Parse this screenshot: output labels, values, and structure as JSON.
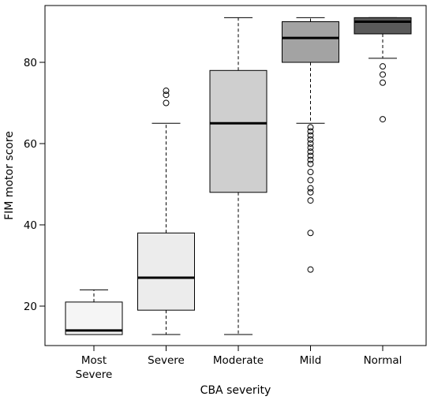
{
  "chart_data": {
    "type": "boxplot",
    "title": "",
    "xlabel": "CBA severity",
    "ylabel": "FIM motor score",
    "ylim": [
      10,
      95
    ],
    "yticks": [
      20,
      40,
      60,
      80
    ],
    "grid": false,
    "categories": [
      [
        "Most",
        "Severe"
      ],
      [
        "Severe"
      ],
      [
        "Moderate"
      ],
      [
        "Mild"
      ],
      [
        "Normal"
      ]
    ],
    "boxes": [
      {
        "whisker_low": 13,
        "q1": 13,
        "median": 14,
        "q3": 21,
        "whisker_high": 24,
        "fill": "#f5f5f5",
        "outliers": []
      },
      {
        "whisker_low": 13,
        "q1": 19,
        "median": 27,
        "q3": 38,
        "whisker_high": 65,
        "fill": "#ececec",
        "outliers": [
          70,
          72,
          73
        ]
      },
      {
        "whisker_low": 13,
        "q1": 48,
        "median": 65,
        "q3": 78,
        "whisker_high": 91,
        "fill": "#cfcfcf",
        "outliers": []
      },
      {
        "whisker_low": 65,
        "q1": 80,
        "median": 86,
        "q3": 90,
        "whisker_high": 91,
        "fill": "#a3a3a3",
        "outliers": [
          64,
          63,
          62,
          61,
          60,
          59,
          58,
          57,
          56,
          55,
          53,
          51,
          49,
          48,
          46,
          38,
          29
        ]
      },
      {
        "whisker_low": 81,
        "q1": 87,
        "median": 90,
        "q3": 91,
        "whisker_high": 91,
        "fill": "#595959",
        "outliers": [
          79,
          77,
          75,
          66
        ]
      }
    ]
  }
}
